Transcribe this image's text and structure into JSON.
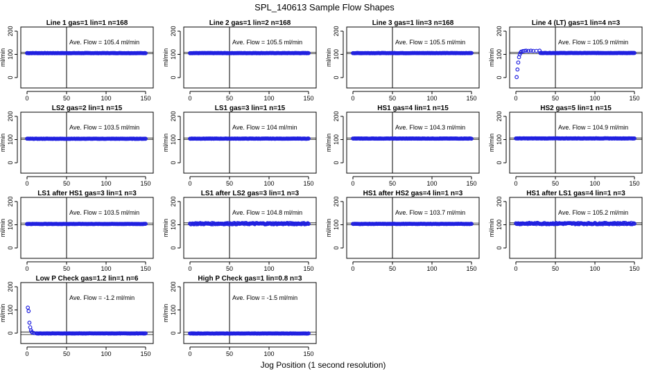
{
  "figure": {
    "title": "SPL_140613  Sample Flow Shapes",
    "xlabel": "Jog Position (1 second resolution)"
  },
  "chart_data": [
    {
      "type": "scatter",
      "title": "Line 1 gas=1 lin=1 n=168",
      "ylabel": "ml/min",
      "xlim": [
        0,
        150
      ],
      "ylim": [
        -30,
        215
      ],
      "xticks": [
        0,
        50,
        100,
        150
      ],
      "yticks": [
        0,
        100,
        200
      ],
      "vline": 50,
      "hlines": [
        103,
        109
      ],
      "annotation": "Ave. Flow =  105.4  ml/min",
      "pattern": "flat",
      "level": 105.4
    },
    {
      "type": "scatter",
      "title": "Line 2 gas=1 lin=2 n=168",
      "ylabel": "ml/min",
      "xlim": [
        0,
        150
      ],
      "ylim": [
        -30,
        215
      ],
      "xticks": [
        0,
        50,
        100,
        150
      ],
      "yticks": [
        0,
        100,
        200
      ],
      "vline": 50,
      "hlines": [
        103,
        109
      ],
      "annotation": "Ave. Flow =  105.5  ml/min",
      "pattern": "flat",
      "level": 105.5
    },
    {
      "type": "scatter",
      "title": "Line 3 gas=1 lin=3 n=168",
      "ylabel": "ml/min",
      "xlim": [
        0,
        150
      ],
      "ylim": [
        -30,
        215
      ],
      "xticks": [
        0,
        50,
        100,
        150
      ],
      "yticks": [
        0,
        100,
        200
      ],
      "vline": 50,
      "hlines": [
        103,
        109
      ],
      "annotation": "Ave. Flow =  105.5  ml/min",
      "pattern": "flat",
      "level": 105.5
    },
    {
      "type": "scatter",
      "title": "Line 4 (LT) gas=1 lin=4 n=3",
      "ylabel": "ml/min",
      "xlim": [
        0,
        150
      ],
      "ylim": [
        -30,
        215
      ],
      "xticks": [
        0,
        50,
        100,
        150
      ],
      "yticks": [
        0,
        100,
        200
      ],
      "vline": 50,
      "hlines": [
        103,
        109
      ],
      "annotation": "Ave. Flow =  105.9  ml/min",
      "pattern": "rise",
      "level": 105.9,
      "start_points": [
        [
          1,
          2
        ],
        [
          2,
          35
        ],
        [
          3,
          65
        ],
        [
          4,
          88
        ],
        [
          5,
          100
        ],
        [
          6,
          108
        ],
        [
          7,
          112
        ],
        [
          9,
          114
        ],
        [
          11,
          115
        ],
        [
          13,
          116
        ],
        [
          16,
          115
        ],
        [
          19,
          116
        ],
        [
          22,
          115
        ],
        [
          26,
          115
        ],
        [
          30,
          116
        ]
      ]
    },
    {
      "type": "scatter",
      "title": "LS2 gas=2 lin=1 n=15",
      "ylabel": "ml/min",
      "xlim": [
        0,
        150
      ],
      "ylim": [
        -30,
        215
      ],
      "xticks": [
        0,
        50,
        100,
        150
      ],
      "yticks": [
        0,
        100,
        200
      ],
      "vline": 50,
      "hlines": [
        101,
        107
      ],
      "annotation": "Ave. Flow =  103.5  ml/min",
      "pattern": "flat",
      "level": 103.5
    },
    {
      "type": "scatter",
      "title": "LS1 gas=3 lin=1 n=15",
      "ylabel": "ml/min",
      "xlim": [
        0,
        150
      ],
      "ylim": [
        -30,
        215
      ],
      "xticks": [
        0,
        50,
        100,
        150
      ],
      "yticks": [
        0,
        100,
        200
      ],
      "vline": 50,
      "hlines": [
        101,
        107
      ],
      "annotation": "Ave. Flow =  104  ml/min",
      "pattern": "flat",
      "level": 104
    },
    {
      "type": "scatter",
      "title": "HS1 gas=4 lin=1 n=15",
      "ylabel": "ml/min",
      "xlim": [
        0,
        150
      ],
      "ylim": [
        -30,
        215
      ],
      "xticks": [
        0,
        50,
        100,
        150
      ],
      "yticks": [
        0,
        100,
        200
      ],
      "vline": 50,
      "hlines": [
        101,
        107
      ],
      "annotation": "Ave. Flow =  104.3  ml/min",
      "pattern": "flat",
      "level": 104.3
    },
    {
      "type": "scatter",
      "title": "HS2 gas=5 lin=1 n=15",
      "ylabel": "ml/min",
      "xlim": [
        0,
        150
      ],
      "ylim": [
        -30,
        215
      ],
      "xticks": [
        0,
        50,
        100,
        150
      ],
      "yticks": [
        0,
        100,
        200
      ],
      "vline": 50,
      "hlines": [
        101,
        107
      ],
      "annotation": "Ave. Flow =  104.9  ml/min",
      "pattern": "flat",
      "level": 104.9
    },
    {
      "type": "scatter",
      "title": "LS1 after HS1 gas=3 lin=1 n=3",
      "ylabel": "ml/min",
      "xlim": [
        0,
        150
      ],
      "ylim": [
        -30,
        215
      ],
      "xticks": [
        0,
        50,
        100,
        150
      ],
      "yticks": [
        0,
        100,
        200
      ],
      "vline": 50,
      "hlines": [
        100,
        107
      ],
      "annotation": "Ave. Flow =  103.5  ml/min",
      "pattern": "flat",
      "level": 103.5
    },
    {
      "type": "scatter",
      "title": "LS1 after LS2 gas=3 lin=1 n=3",
      "ylabel": "ml/min",
      "xlim": [
        0,
        150
      ],
      "ylim": [
        -30,
        215
      ],
      "xticks": [
        0,
        50,
        100,
        150
      ],
      "yticks": [
        0,
        100,
        200
      ],
      "vline": 50,
      "hlines": [
        100,
        108
      ],
      "annotation": "Ave. Flow =  104.8  ml/min",
      "pattern": "noisy",
      "level": 104.8
    },
    {
      "type": "scatter",
      "title": "HS1 after HS2 gas=4 lin=1 n=3",
      "ylabel": "ml/min",
      "xlim": [
        0,
        150
      ],
      "ylim": [
        -30,
        215
      ],
      "xticks": [
        0,
        50,
        100,
        150
      ],
      "yticks": [
        0,
        100,
        200
      ],
      "vline": 50,
      "hlines": [
        100,
        107
      ],
      "annotation": "Ave. Flow =  103.7  ml/min",
      "pattern": "flat",
      "level": 103.7
    },
    {
      "type": "scatter",
      "title": "HS1 after LS1 gas=4 lin=1 n=3",
      "ylabel": "ml/min",
      "xlim": [
        0,
        150
      ],
      "ylim": [
        -30,
        215
      ],
      "xticks": [
        0,
        50,
        100,
        150
      ],
      "yticks": [
        0,
        100,
        200
      ],
      "vline": 50,
      "hlines": [
        101,
        108
      ],
      "annotation": "Ave. Flow =  105.2  ml/min",
      "pattern": "noisy",
      "level": 105.2
    },
    {
      "type": "scatter",
      "title": "Low P Check gas=1.2 lin=1 n=6",
      "ylabel": "ml/min",
      "xlim": [
        0,
        150
      ],
      "ylim": [
        -30,
        215
      ],
      "xticks": [
        0,
        50,
        100,
        150
      ],
      "yticks": [
        0,
        100,
        200
      ],
      "vline": 50,
      "hlines": [
        -6,
        5
      ],
      "annotation": "Ave. Flow =  -1.2  ml/min",
      "pattern": "decay",
      "level": -1.2,
      "start_points": [
        [
          1,
          110
        ],
        [
          2,
          95
        ],
        [
          3,
          45
        ],
        [
          4,
          25
        ],
        [
          5,
          12
        ],
        [
          6,
          5
        ],
        [
          7,
          2
        ],
        [
          9,
          0
        ],
        [
          12,
          -1
        ]
      ]
    },
    {
      "type": "scatter",
      "title": "High P Check gas=1 lin=0.8 n=3",
      "ylabel": "ml/min",
      "xlim": [
        0,
        150
      ],
      "ylim": [
        -30,
        215
      ],
      "xticks": [
        0,
        50,
        100,
        150
      ],
      "yticks": [
        0,
        100,
        200
      ],
      "vline": 50,
      "hlines": [
        -6,
        4
      ],
      "annotation": "Ave. Flow =  -1.5  ml/min",
      "pattern": "flat",
      "level": -1.5
    }
  ],
  "colors": {
    "points": "#2020e0",
    "axis": "#000000"
  }
}
